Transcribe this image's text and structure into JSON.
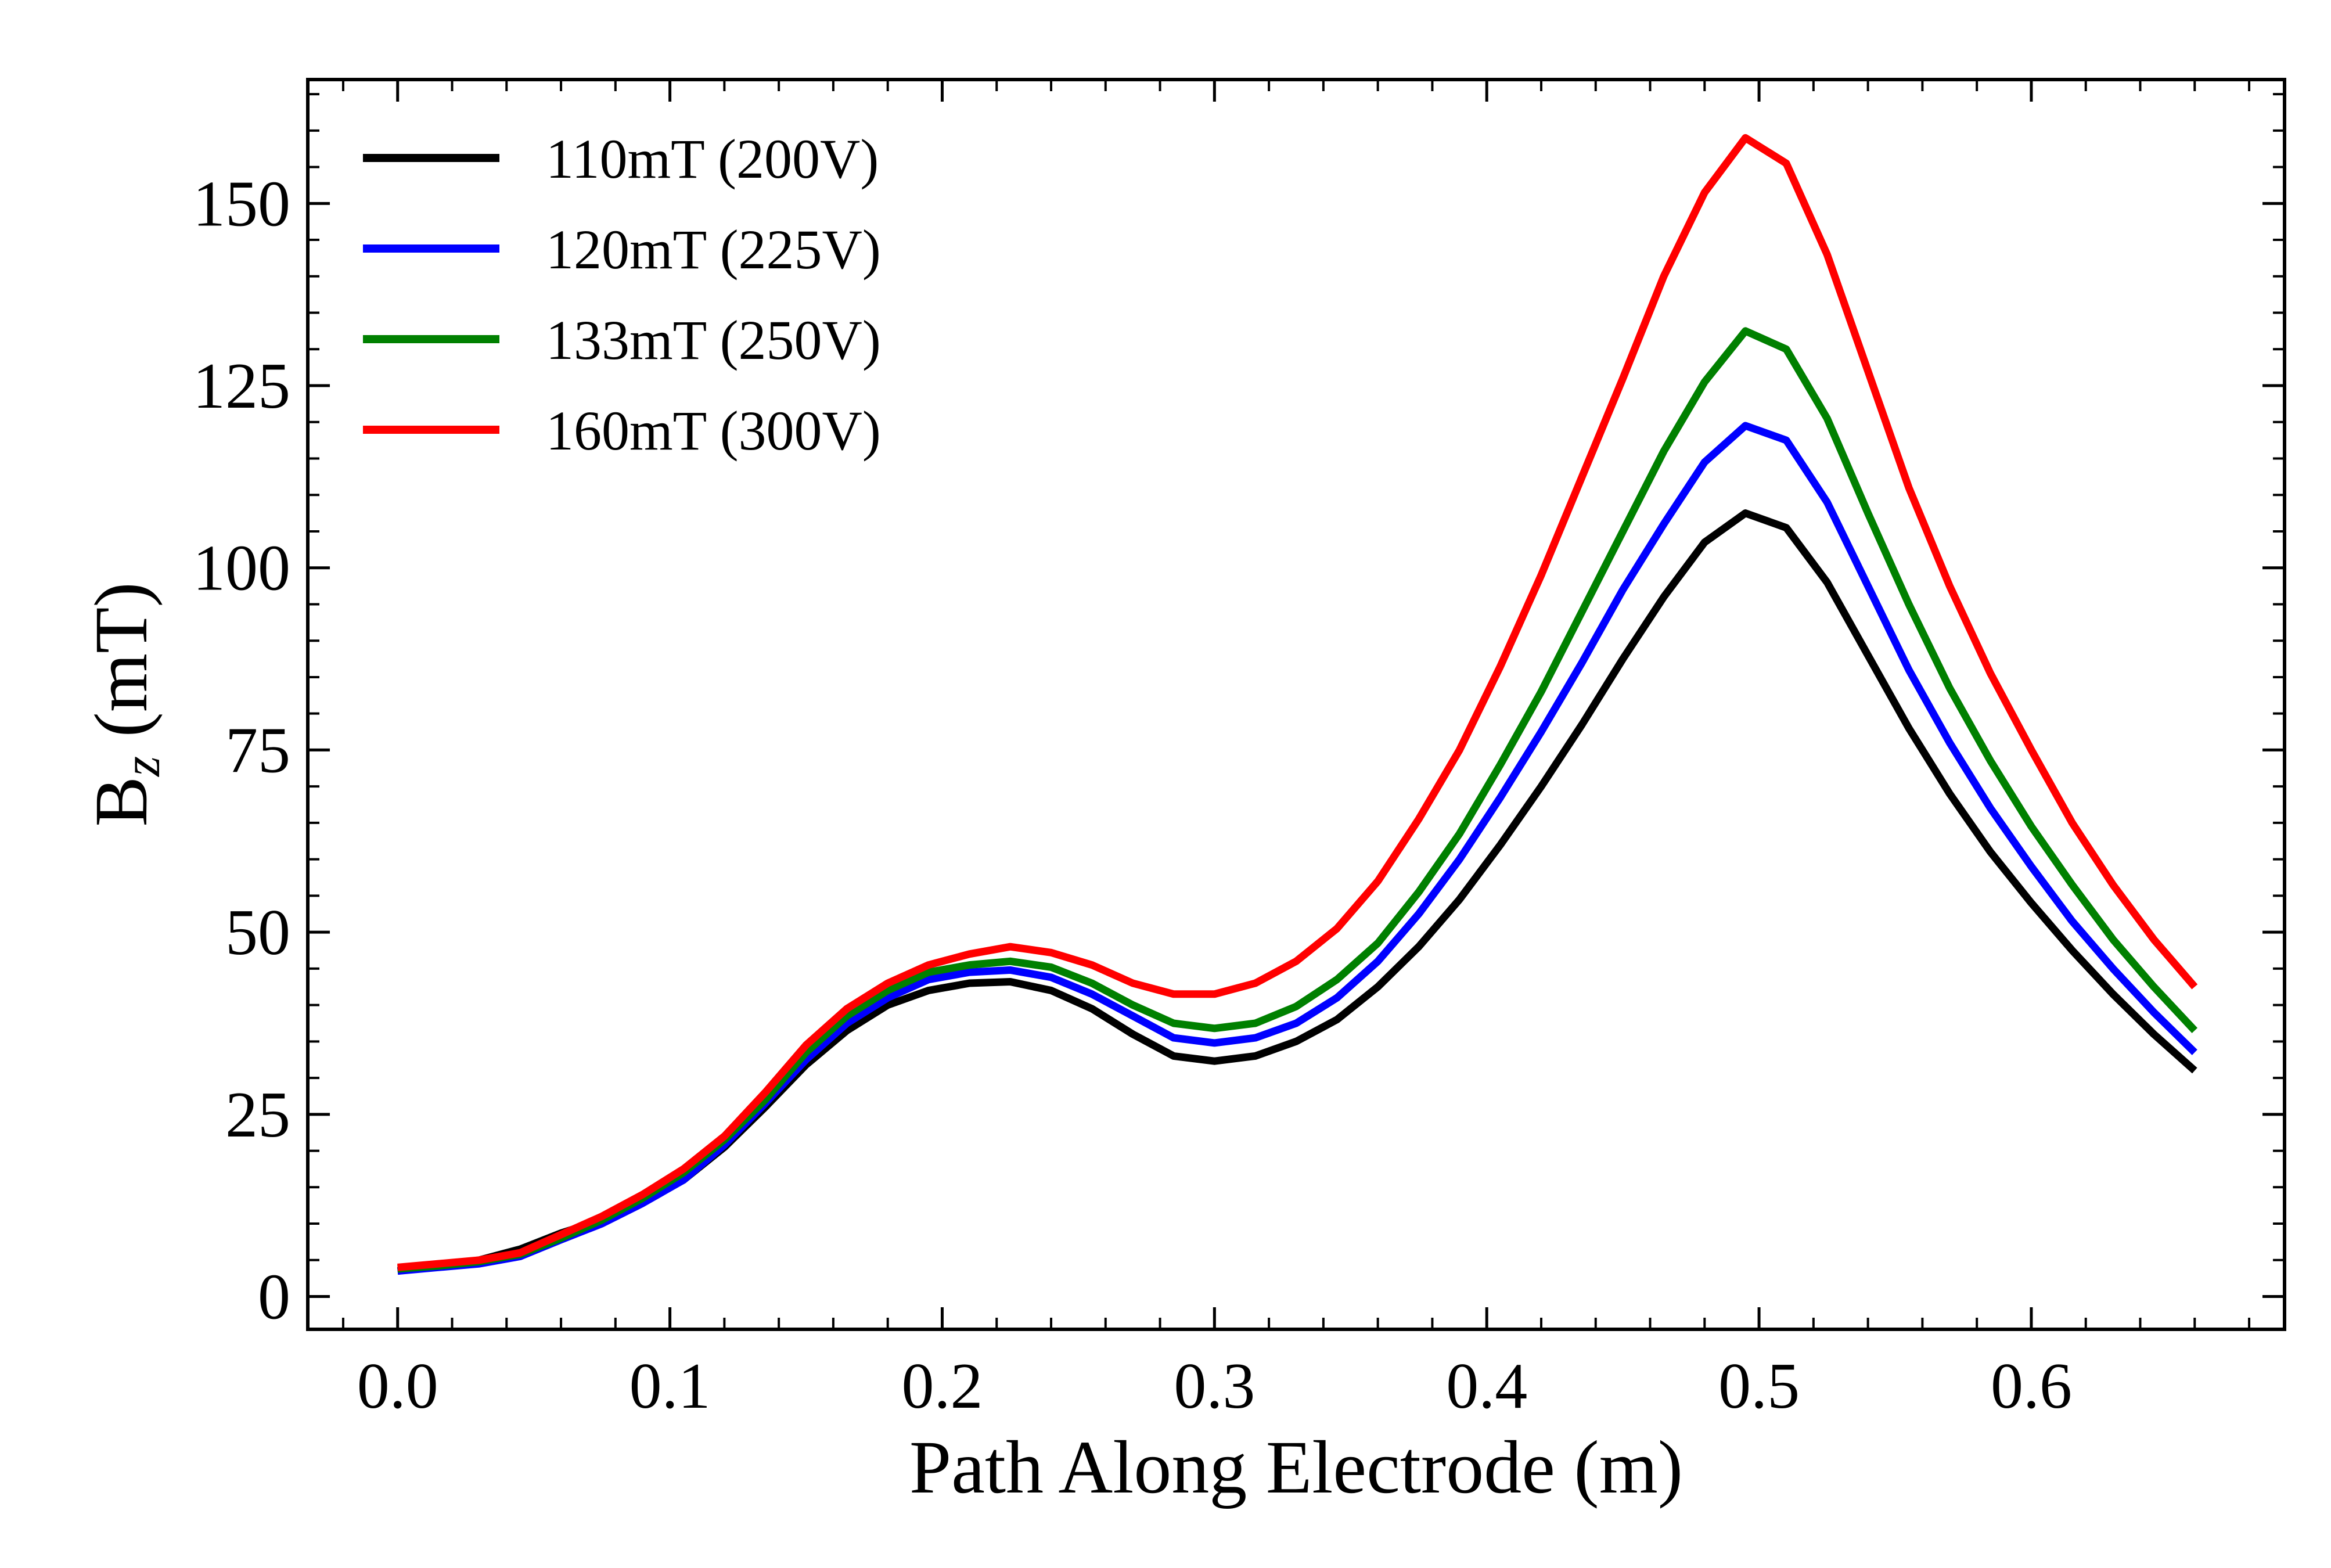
{
  "chart_data": {
    "type": "line",
    "xlabel": "Path Along Electrode (m)",
    "ylabel": "B",
    "ylabel_sub": "z",
    "ylabel_suffix": " (mT)",
    "xlim": [
      -0.033,
      0.693
    ],
    "ylim": [
      -4.5,
      167
    ],
    "x_ticks": [
      0.0,
      0.1,
      0.2,
      0.3,
      0.4,
      0.5,
      0.6
    ],
    "x_tick_labels": [
      "0.0",
      "0.1",
      "0.2",
      "0.3",
      "0.4",
      "0.5",
      "0.6"
    ],
    "y_ticks": [
      0,
      25,
      50,
      75,
      100,
      125,
      150
    ],
    "y_tick_labels": [
      "0",
      "25",
      "50",
      "75",
      "100",
      "125",
      "150"
    ],
    "grid": false,
    "legend_position": "top-left",
    "x": [
      0.0,
      0.015,
      0.03,
      0.045,
      0.06,
      0.075,
      0.09,
      0.105,
      0.12,
      0.135,
      0.15,
      0.165,
      0.18,
      0.195,
      0.21,
      0.225,
      0.24,
      0.255,
      0.27,
      0.285,
      0.3,
      0.315,
      0.33,
      0.345,
      0.36,
      0.375,
      0.39,
      0.405,
      0.42,
      0.435,
      0.45,
      0.465,
      0.48,
      0.495,
      0.51,
      0.525,
      0.54,
      0.555,
      0.57,
      0.585,
      0.6,
      0.615,
      0.63,
      0.645,
      0.66
    ],
    "series": [
      {
        "name": "110mT (200V)",
        "color": "#000000",
        "values": [
          3.5,
          4.2,
          5.0,
          6.5,
          8.7,
          10.5,
          13.0,
          16.0,
          20.5,
          26.0,
          31.8,
          36.5,
          40.0,
          42.0,
          43.0,
          43.2,
          42.0,
          39.5,
          36.0,
          33.0,
          32.3,
          33.0,
          35.0,
          38.0,
          42.5,
          48.0,
          54.5,
          62.0,
          70.0,
          78.5,
          87.5,
          96.0,
          103.5,
          107.5,
          105.5,
          98.0,
          88.0,
          78.0,
          69.0,
          61.0,
          54.0,
          47.5,
          41.5,
          36.0,
          31.0
        ]
      },
      {
        "name": "120mT (225V)",
        "color": "#0000ff",
        "values": [
          3.5,
          4.0,
          4.5,
          5.5,
          7.8,
          10.0,
          12.8,
          16.0,
          20.8,
          26.5,
          32.5,
          37.5,
          41.0,
          43.5,
          44.5,
          44.8,
          43.8,
          41.5,
          38.5,
          35.5,
          34.8,
          35.5,
          37.5,
          41.0,
          46.0,
          52.5,
          60.0,
          68.5,
          77.5,
          87.0,
          97.0,
          106.0,
          114.5,
          119.5,
          117.5,
          109.0,
          97.5,
          86.0,
          76.0,
          67.0,
          59.0,
          51.5,
          45.0,
          39.0,
          33.5
        ]
      },
      {
        "name": "133mT (250V)",
        "color": "#008000",
        "values": [
          3.8,
          4.2,
          4.8,
          5.8,
          8.0,
          10.5,
          13.5,
          17.0,
          21.5,
          27.0,
          33.5,
          38.5,
          42.0,
          44.5,
          45.5,
          46.0,
          45.2,
          43.0,
          40.0,
          37.5,
          36.8,
          37.5,
          39.8,
          43.5,
          48.5,
          55.5,
          63.5,
          73.0,
          83.0,
          94.0,
          105.0,
          116.0,
          125.5,
          132.5,
          130.0,
          120.5,
          107.5,
          95.0,
          83.5,
          73.5,
          64.5,
          56.5,
          49.0,
          42.5,
          36.5
        ]
      },
      {
        "name": "160mT (300V)",
        "color": "#ff0000",
        "values": [
          4.0,
          4.5,
          5.0,
          6.0,
          8.5,
          11.0,
          14.0,
          17.5,
          22.0,
          28.0,
          34.5,
          39.5,
          43.0,
          45.5,
          47.0,
          48.0,
          47.2,
          45.5,
          43.0,
          41.5,
          41.5,
          43.0,
          46.0,
          50.5,
          57.0,
          65.5,
          75.0,
          86.5,
          99.0,
          112.5,
          126.0,
          140.0,
          151.5,
          159.0,
          155.5,
          143.0,
          127.0,
          111.0,
          97.5,
          85.5,
          75.0,
          65.0,
          56.5,
          49.0,
          42.5
        ]
      }
    ]
  }
}
